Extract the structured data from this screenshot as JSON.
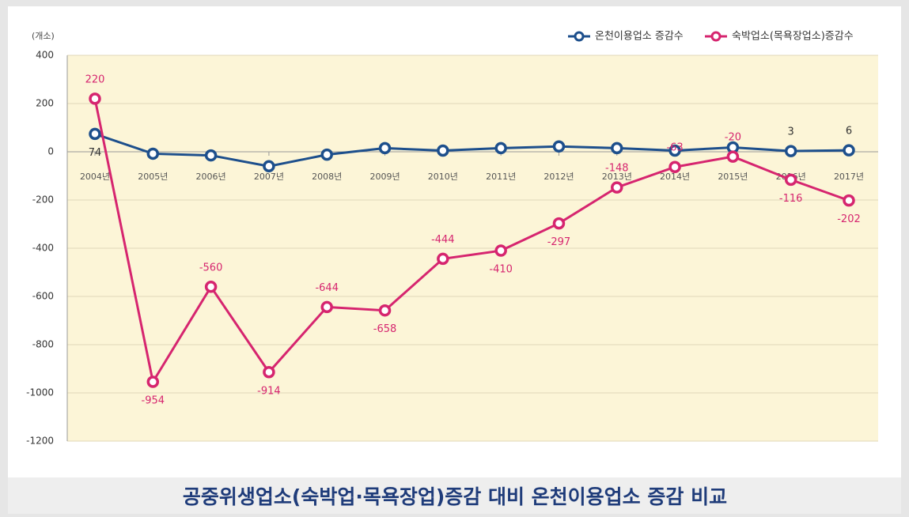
{
  "chart_data": {
    "type": "line",
    "title": "공중위생업소(숙박업·목욕장업)증감 대비 온천이용업소 증감 비교",
    "y_label": "(개소)",
    "categories": [
      "2004년",
      "2005년",
      "2006년",
      "2007년",
      "2008년",
      "2009년",
      "2010년",
      "2011년",
      "2012년",
      "2013년",
      "2014년",
      "2015년",
      "2016년",
      "2017년"
    ],
    "series": [
      {
        "name": "온천이용업소 증감수",
        "color": "#1d4f8c",
        "values": [
          74,
          -8,
          -15,
          -60,
          -12,
          15,
          5,
          15,
          22,
          15,
          5,
          18,
          3,
          6
        ],
        "value_labels": [
          "74",
          null,
          null,
          null,
          null,
          null,
          null,
          null,
          null,
          null,
          null,
          null,
          "3",
          "6"
        ]
      },
      {
        "name": "숙박업소(목욕장업소)증감수",
        "color": "#d6256f",
        "values": [
          220,
          -954,
          -560,
          -914,
          -644,
          -658,
          -444,
          -410,
          -297,
          -148,
          -63,
          -20,
          -116,
          -202
        ]
      }
    ],
    "ylim": [
      -1200,
      400
    ],
    "yticks": [
      -1200,
      -1000,
      -800,
      -600,
      -400,
      -200,
      0,
      200,
      400
    ],
    "grid": true,
    "legend": "top-right"
  }
}
